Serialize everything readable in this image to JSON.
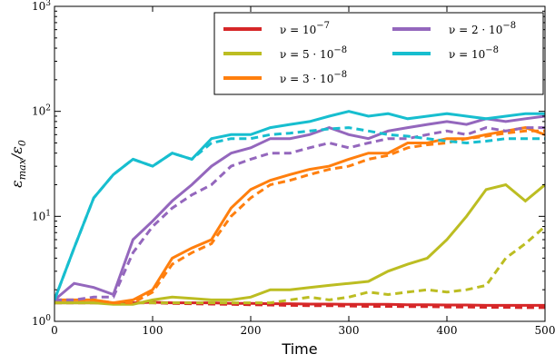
{
  "chart_data": {
    "type": "line",
    "xlabel": "Time",
    "ylabel": [
      "ε",
      "max",
      "/ε",
      "0"
    ],
    "x": [
      0,
      20,
      40,
      60,
      80,
      100,
      120,
      140,
      160,
      180,
      200,
      220,
      240,
      260,
      280,
      300,
      320,
      340,
      360,
      380,
      400,
      420,
      440,
      460,
      480,
      500
    ],
    "xlim": [
      0,
      500
    ],
    "xticks": [
      0,
      100,
      200,
      300,
      400,
      500
    ],
    "ylim": [
      1,
      1000
    ],
    "log_y": true,
    "yticks": [
      {
        "value": 1,
        "label": "10",
        "power": "0"
      },
      {
        "value": 10,
        "label": "10",
        "power": "1"
      },
      {
        "value": 100,
        "label": "10",
        "power": "2"
      },
      {
        "value": 1000,
        "label": "10",
        "power": "3"
      }
    ],
    "legend_position": "upper right",
    "legend_columns": 2,
    "series": [
      {
        "name": "ν = 10",
        "name_power": "−7",
        "color": "#d62728",
        "values": [
          1.5,
          1.5,
          1.5,
          1.5,
          1.5,
          1.52,
          1.5,
          1.5,
          1.5,
          1.48,
          1.48,
          1.47,
          1.47,
          1.46,
          1.46,
          1.45,
          1.45,
          1.45,
          1.44,
          1.44,
          1.43,
          1.43,
          1.42,
          1.42,
          1.42,
          1.42
        ],
        "values_dashed": [
          1.5,
          1.5,
          1.5,
          1.5,
          1.5,
          1.5,
          1.48,
          1.47,
          1.46,
          1.45,
          1.44,
          1.43,
          1.42,
          1.41,
          1.41,
          1.4,
          1.39,
          1.39,
          1.38,
          1.38,
          1.37,
          1.37,
          1.36,
          1.36,
          1.35,
          1.35
        ]
      },
      {
        "name": "ν = 5 · 10",
        "name_power": "−8",
        "color": "#bcbd22",
        "values": [
          1.5,
          1.5,
          1.5,
          1.45,
          1.45,
          1.6,
          1.7,
          1.65,
          1.6,
          1.6,
          1.7,
          2,
          2,
          2.1,
          2.2,
          2.3,
          2.4,
          3,
          3.5,
          4,
          6,
          10,
          18,
          20,
          14,
          20
        ],
        "values_dashed": [
          1.5,
          1.5,
          1.5,
          1.5,
          1.5,
          1.5,
          1.5,
          1.5,
          1.5,
          1.5,
          1.5,
          1.5,
          1.6,
          1.7,
          1.6,
          1.7,
          1.9,
          1.8,
          1.9,
          2,
          1.9,
          2,
          2.2,
          4,
          5.5,
          8
        ]
      },
      {
        "name": "ν = 3 · 10",
        "name_power": "−8",
        "color": "#ff7f0e",
        "values": [
          1.6,
          1.6,
          1.6,
          1.5,
          1.6,
          2,
          4,
          5,
          6,
          12,
          18,
          22,
          25,
          28,
          30,
          35,
          40,
          40,
          50,
          50,
          55,
          55,
          60,
          65,
          70,
          60
        ],
        "values_dashed": [
          1.6,
          1.6,
          1.6,
          1.5,
          1.5,
          1.9,
          3.5,
          4.5,
          5.5,
          10,
          15,
          20,
          22,
          25,
          28,
          30,
          35,
          38,
          45,
          48,
          50,
          55,
          58,
          62,
          65,
          65
        ]
      },
      {
        "name": "ν = 2 · 10",
        "name_power": "−8",
        "color": "#9467bd",
        "values": [
          1.6,
          2.3,
          2.1,
          1.8,
          6,
          9,
          14,
          20,
          30,
          40,
          45,
          55,
          55,
          60,
          70,
          60,
          55,
          65,
          70,
          75,
          80,
          75,
          85,
          80,
          85,
          90
        ],
        "values_dashed": [
          1.6,
          1.6,
          1.7,
          1.7,
          4.5,
          8,
          12,
          16,
          20,
          30,
          35,
          40,
          40,
          45,
          50,
          45,
          50,
          55,
          55,
          60,
          65,
          60,
          70,
          65,
          70,
          70
        ]
      },
      {
        "name": "ν = 10",
        "name_power": "−8",
        "color": "#17becf",
        "values": [
          1.6,
          5,
          15,
          25,
          35,
          30,
          40,
          35,
          55,
          60,
          60,
          70,
          75,
          80,
          90,
          100,
          90,
          95,
          85,
          90,
          95,
          90,
          85,
          90,
          95,
          95
        ],
        "values_dashed": [
          1.6,
          5,
          15,
          25,
          35,
          30,
          40,
          35,
          50,
          55,
          55,
          60,
          62,
          65,
          68,
          70,
          65,
          60,
          58,
          55,
          52,
          50,
          52,
          55,
          55,
          55
        ]
      }
    ]
  }
}
